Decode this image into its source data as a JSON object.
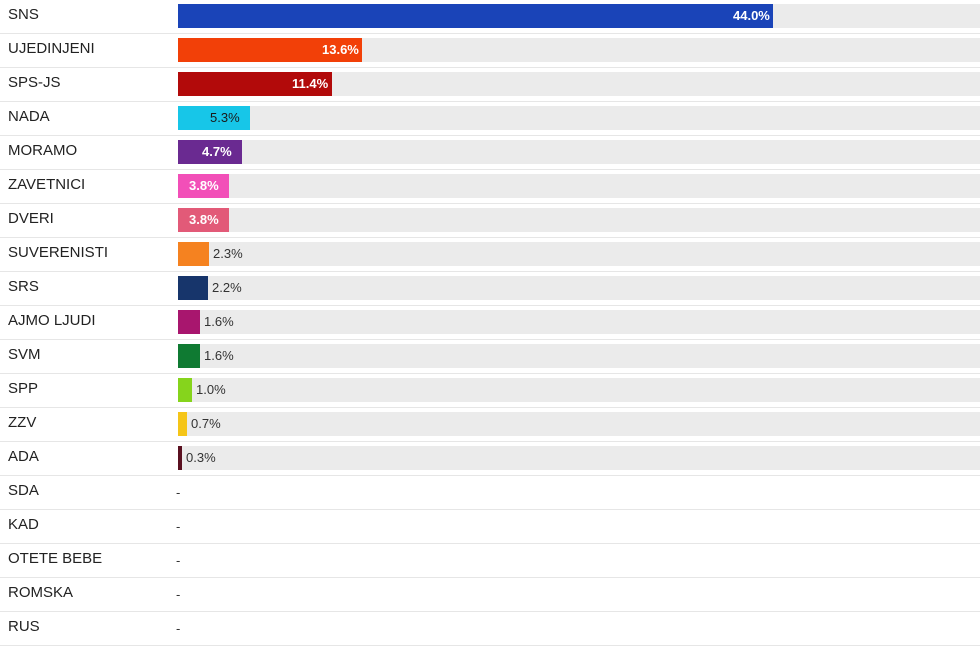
{
  "chart_data": {
    "type": "bar",
    "orientation": "horizontal",
    "xlim": [
      0,
      59.3
    ],
    "unit": "%",
    "grid": false,
    "legend": "none",
    "categories": [
      "SNS",
      "UJEDINJENI",
      "SPS-JS",
      "NADA",
      "MORAMO",
      "ZAVETNICI",
      "DVERI",
      "SUVERENISTI",
      "SRS",
      "AJMO LJUDI",
      "SVM",
      "SPP",
      "ZZV",
      "ADA",
      "SDA",
      "KAD",
      "OTETE BEBE",
      "ROMSKA",
      "RUS"
    ],
    "values": [
      44.0,
      13.6,
      11.4,
      5.3,
      4.7,
      3.8,
      3.8,
      2.3,
      2.2,
      1.6,
      1.6,
      1.0,
      0.7,
      0.3,
      null,
      null,
      null,
      null,
      null
    ],
    "value_labels": [
      "44.0%",
      "13.6%",
      "11.4%",
      "5.3%",
      "4.7%",
      "3.8%",
      "3.8%",
      "2.3%",
      "2.2%",
      "1.6%",
      "1.6%",
      "1.0%",
      "0.7%",
      "0.3%",
      "-",
      "-",
      "-",
      "-",
      "-"
    ],
    "colors": [
      "#1a44b8",
      "#f24008",
      "#b20a0a",
      "#17c6e8",
      "#6a2a91",
      "#f24fb8",
      "#e25a78",
      "#f58220",
      "#17356b",
      "#a8166e",
      "#0f7a32",
      "#86d41c",
      "#f5c518",
      "#5a1020",
      null,
      null,
      null,
      null,
      null
    ],
    "label_inside": [
      true,
      true,
      true,
      true,
      true,
      true,
      true,
      false,
      false,
      false,
      false,
      false,
      false,
      false,
      false,
      false,
      false,
      false,
      false
    ],
    "label_dark": [
      false,
      false,
      false,
      true,
      false,
      false,
      false,
      false,
      false,
      false,
      false,
      false,
      false,
      false,
      false,
      false,
      false,
      false,
      false
    ]
  }
}
